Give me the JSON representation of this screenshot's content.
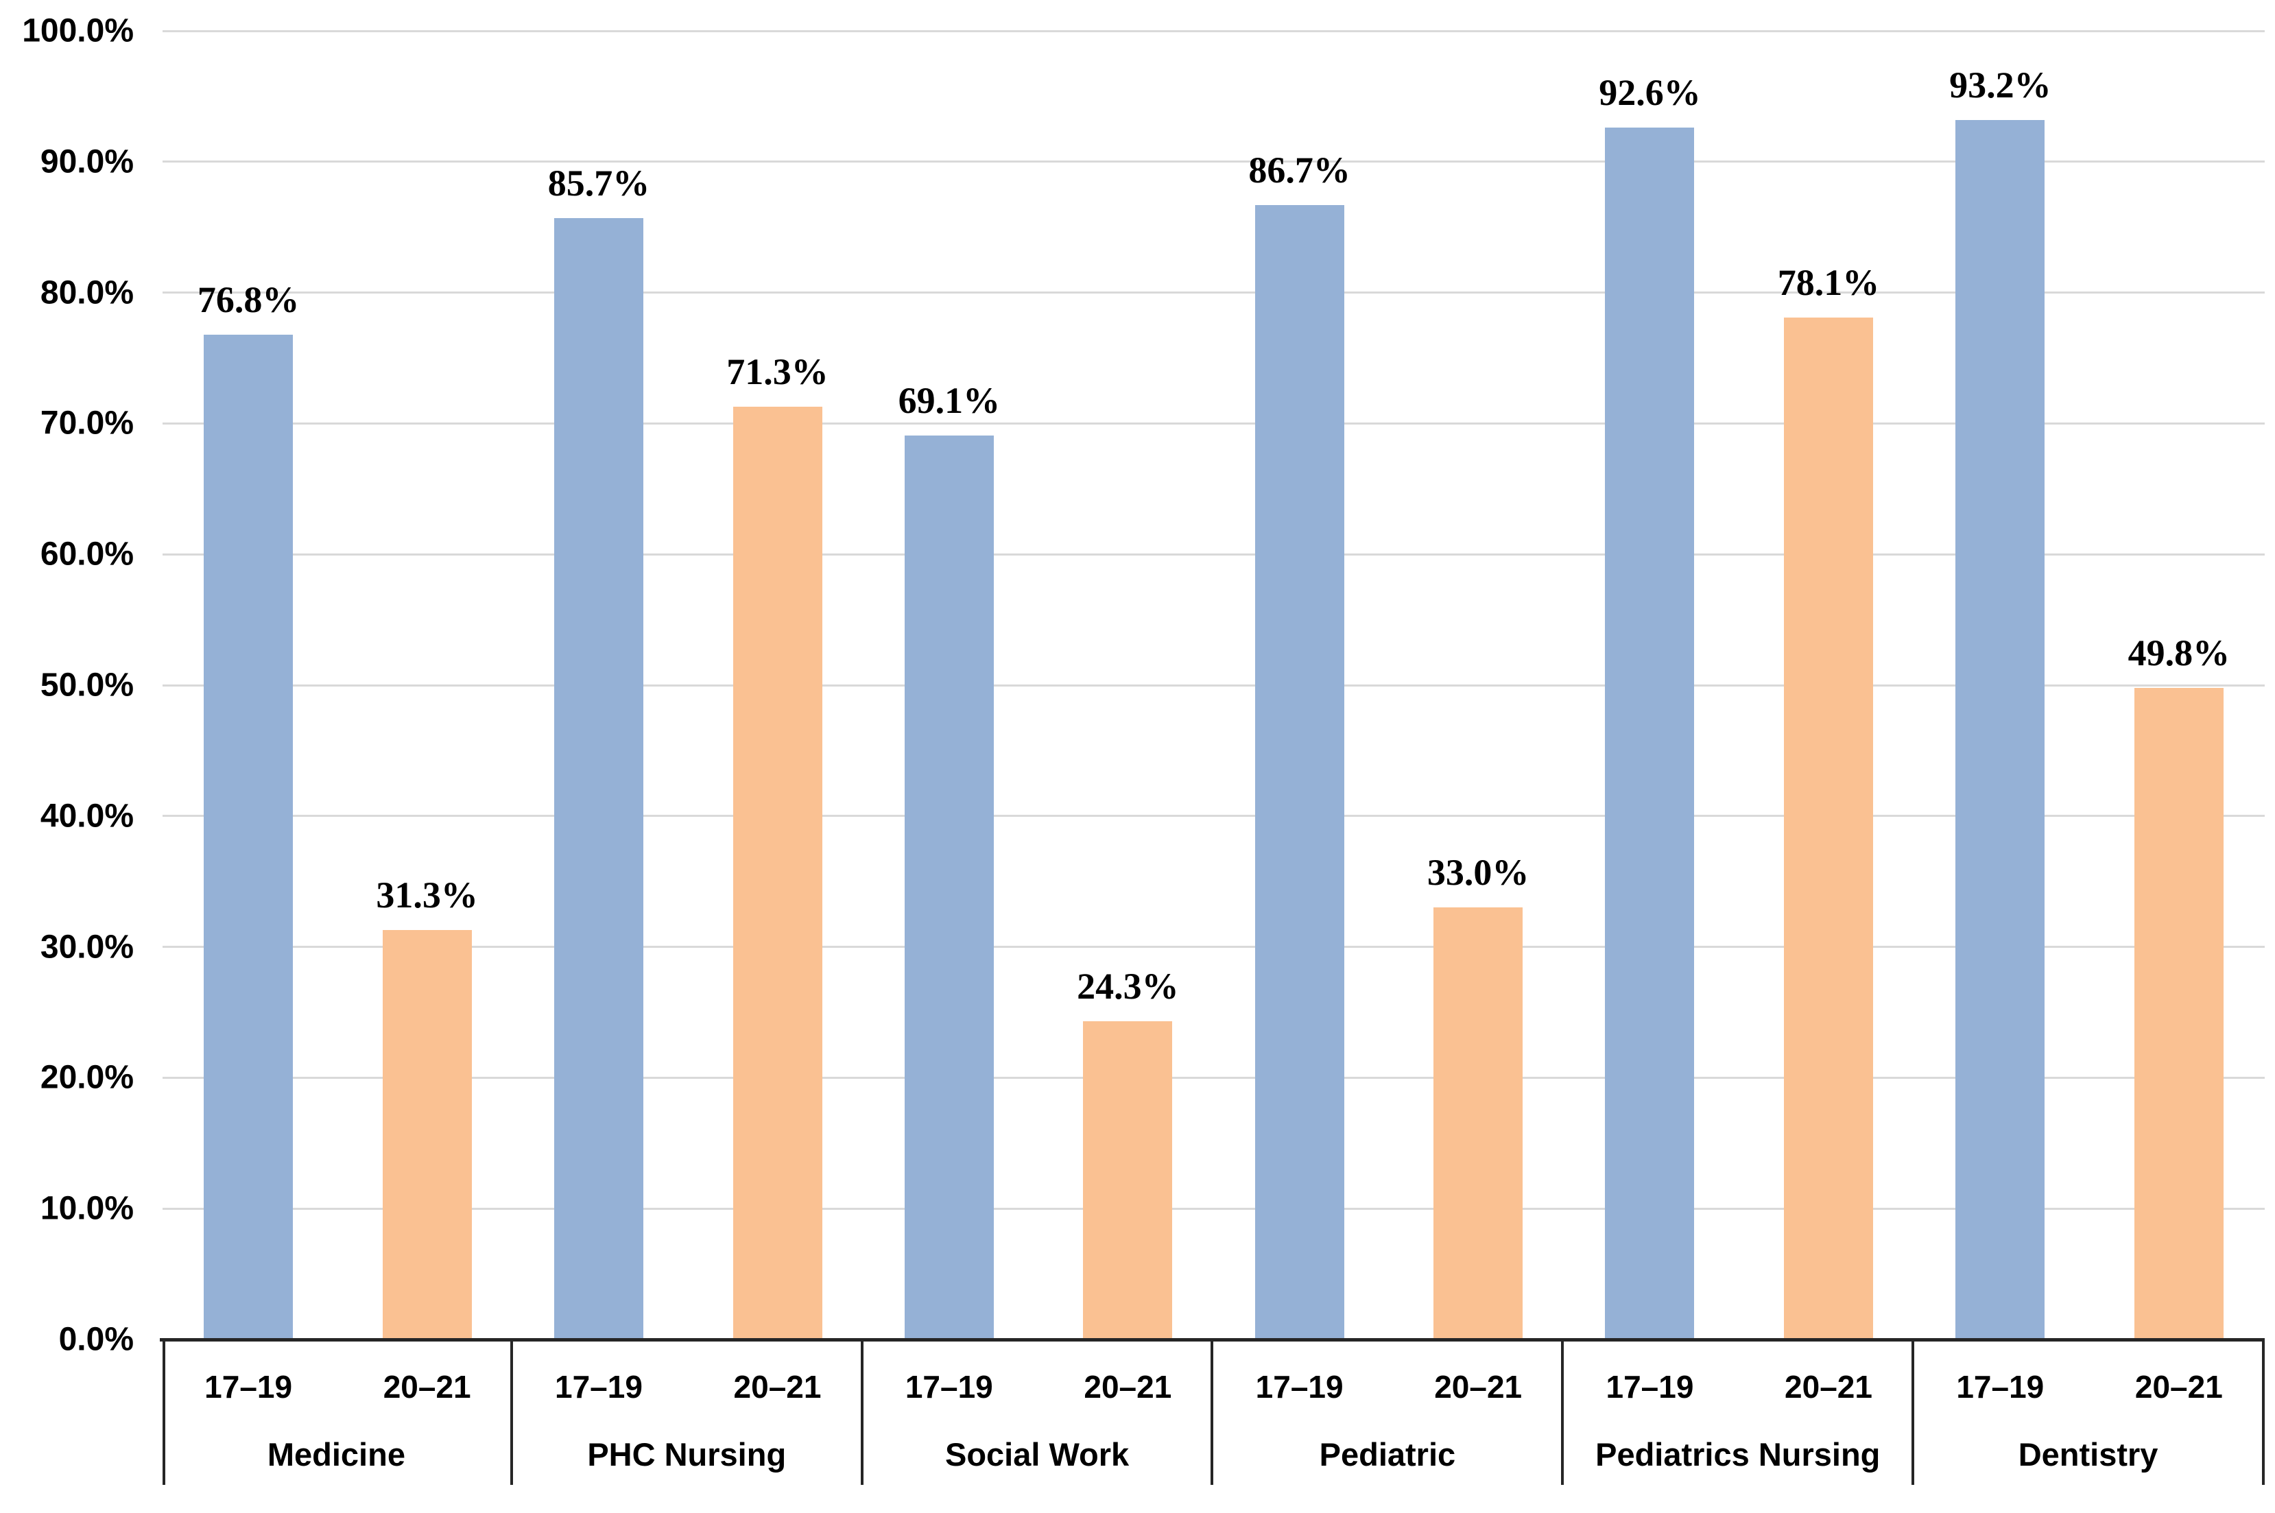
{
  "chart_data": {
    "type": "bar",
    "title": "",
    "categories": [
      "Medicine",
      "PHC Nursing",
      "Social Work",
      "Pediatric",
      "Pediatrics Nursing",
      "Dentistry"
    ],
    "series": [
      {
        "name": "17–19",
        "color": "#95B1D6",
        "values": [
          76.8,
          85.7,
          69.1,
          86.7,
          92.6,
          93.2
        ],
        "data_labels": [
          "76.8%",
          "85.7%",
          "69.1%",
          "86.7%",
          "92.6%",
          "93.2%"
        ]
      },
      {
        "name": "20–21",
        "color": "#FAC192",
        "values": [
          31.3,
          71.3,
          24.3,
          33.0,
          78.1,
          49.8
        ],
        "data_labels": [
          "31.3%",
          "71.3%",
          "24.3%",
          "33.0%",
          "78.1%",
          "49.8%"
        ]
      }
    ],
    "series_tick_labels": [
      "17–19",
      "20–21"
    ],
    "xlabel": "",
    "ylabel": "",
    "y_axis": {
      "min": 0,
      "max": 100,
      "step": 10,
      "tick_labels": [
        "0.0%",
        "10.0%",
        "20.0%",
        "30.0%",
        "40.0%",
        "50.0%",
        "60.0%",
        "70.0%",
        "80.0%",
        "90.0%",
        "100.0%"
      ]
    },
    "grid": true,
    "legend_position": "none",
    "colors": {
      "bar_blue": "#95B1D6",
      "bar_orange": "#FAC192",
      "gridline": "#D9D9D9",
      "axis_line": "#262626",
      "label_text": "#000000"
    }
  }
}
